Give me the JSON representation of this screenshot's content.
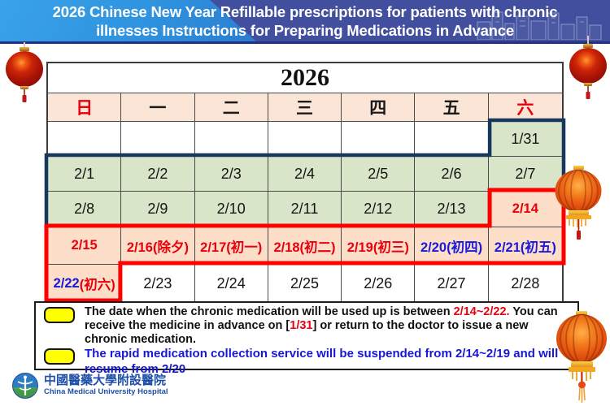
{
  "header": {
    "title_line1": "2026 Chinese New Year Refillable prescriptions for patients with chronic",
    "title_line2": "illnesses Instructions for Preparing Medications in Advance"
  },
  "calendar": {
    "year": "2026",
    "weekdays": [
      "日",
      "一",
      "二",
      "三",
      "四",
      "五",
      "六"
    ],
    "rows": [
      [
        "",
        "",
        "",
        "",
        "",
        "",
        "1/31"
      ],
      [
        "2/1",
        "2/2",
        "2/3",
        "2/4",
        "2/5",
        "2/6",
        "2/7"
      ],
      [
        "2/8",
        "2/9",
        "2/10",
        "2/11",
        "2/12",
        "2/13",
        "2/14"
      ],
      [
        "2/15",
        "2/16(除夕)",
        "2/17(初一)",
        "2/18(初二)",
        "2/19(初三)",
        "2/20(初四)",
        "2/21(初五)"
      ],
      [
        [
          {
            "text": "2/22",
            "style": "blue"
          },
          {
            "text": "(初六)",
            "style": "red"
          }
        ],
        "2/23",
        "2/24",
        "2/25",
        "2/26",
        "2/27",
        "2/28"
      ]
    ]
  },
  "notes": [
    {
      "icon": "yellow-highlight-box",
      "segments": [
        {
          "text": "The date when the chronic medication will be used up is between ",
          "style": "black"
        },
        {
          "text": "2/14~2/22.",
          "style": "red"
        },
        {
          "text": " You can receive the medicine in advance on [",
          "style": "black"
        },
        {
          "text": "1/31",
          "style": "red"
        },
        {
          "text": "] or return to the doctor to issue a new chronic medication.",
          "style": "black"
        }
      ]
    },
    {
      "icon": "yellow-highlight-box",
      "segments": [
        {
          "text": "The rapid medication collection service will be suspended from 2/14~2/19 and will resume from 2/20",
          "style": "blue"
        }
      ]
    }
  ],
  "footer": {
    "hospital_name_zh": "中國醫藥大學附設醫院",
    "hospital_name_en": "China Medical University Hospital"
  },
  "colors": {
    "banner_blue": "#414F9E",
    "banner_light_blue": "#2F93DF",
    "green_cell": "#D9E5C8",
    "weekday_row": "#FBE5D6",
    "holiday_cell": "#FCDEC9",
    "navy_region_border": "#17375D",
    "red_region_border": "#FF0000",
    "text_red": "#E8000D",
    "text_blue": "#1717D6",
    "highlight_yellow": "#FFFF00",
    "hospital_blue": "#1D4FA8"
  }
}
